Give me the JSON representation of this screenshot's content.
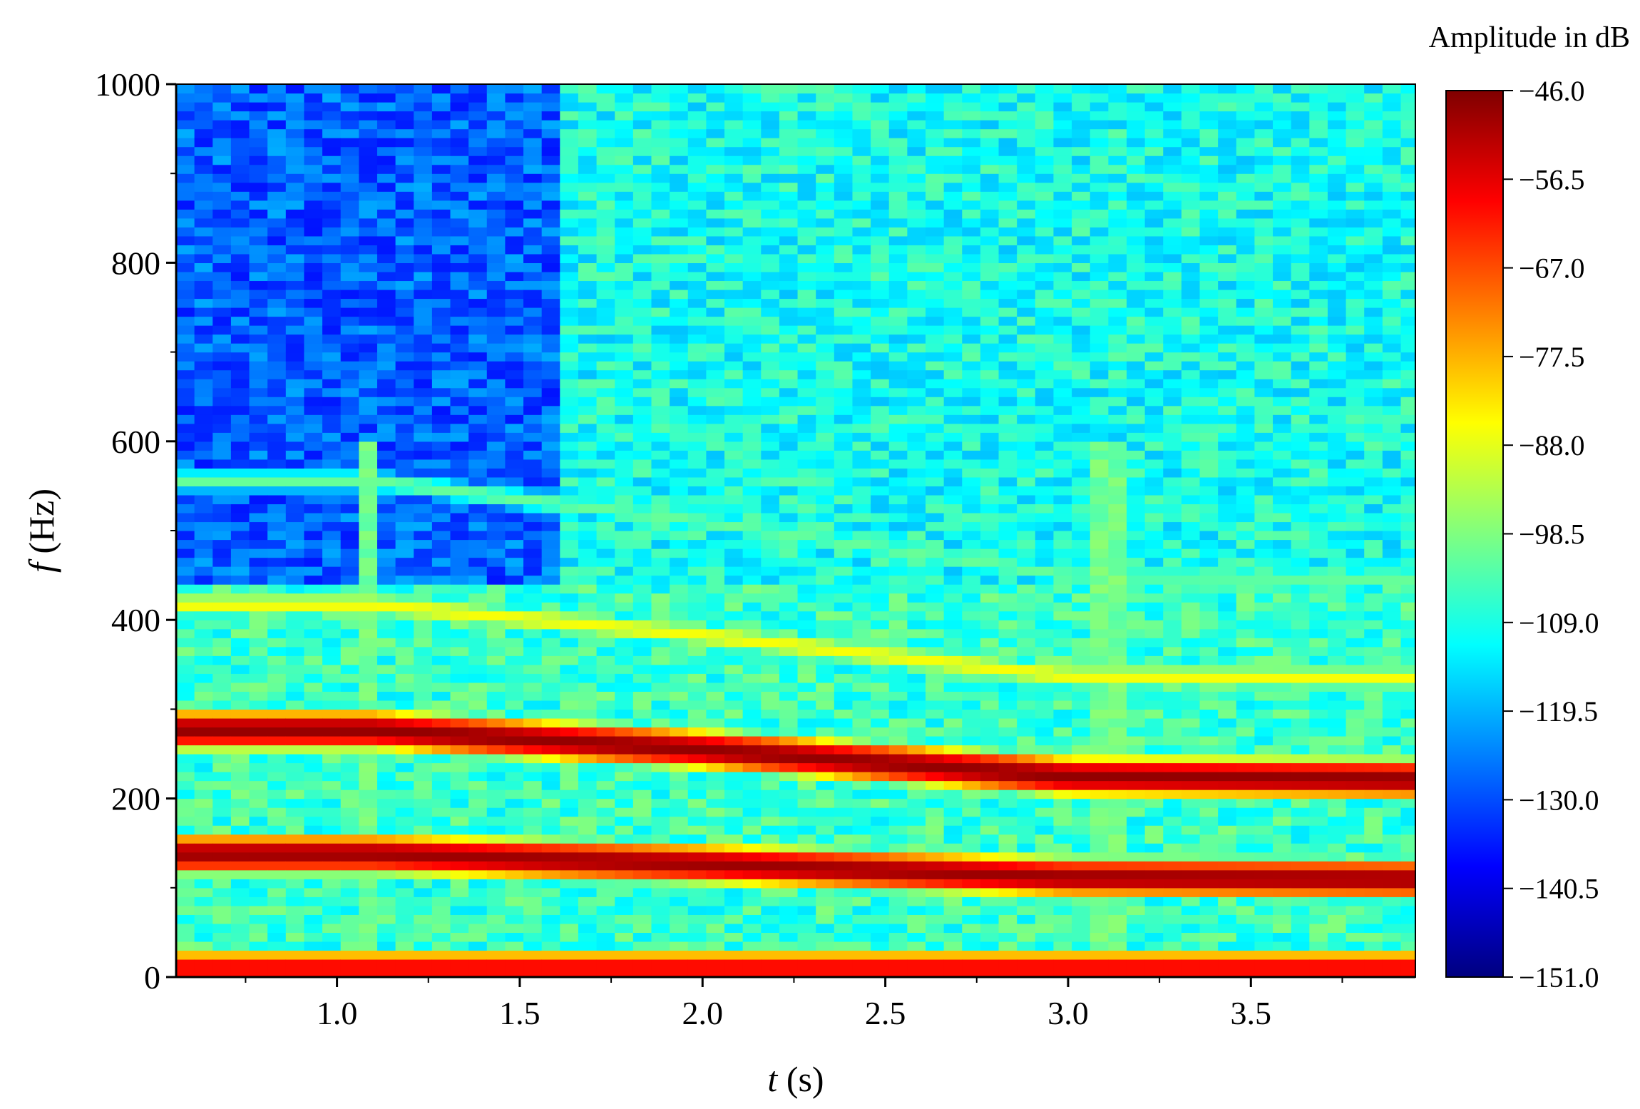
{
  "chart_data": {
    "type": "heatmap",
    "title": "",
    "xlabel_var": "t",
    "xlabel_unit": "(s)",
    "ylabel_var": "f",
    "ylabel_unit": "(Hz)",
    "xlim": [
      0.56,
      3.95
    ],
    "ylim": [
      0,
      1000
    ],
    "x_ticks": [
      "1.0",
      "1.5",
      "2.0",
      "2.5",
      "3.0",
      "3.5"
    ],
    "x_tick_values": [
      1.0,
      1.5,
      2.0,
      2.5,
      3.0,
      3.5
    ],
    "y_ticks": [
      "0",
      "200",
      "400",
      "600",
      "800",
      "1000"
    ],
    "y_tick_values": [
      0,
      200,
      400,
      600,
      800,
      1000
    ],
    "colorbar": {
      "title": "Amplitude in dB",
      "min": -151.0,
      "max": -46.0,
      "ticks": [
        "-46.0",
        "-56.5",
        "-67.0",
        "-77.5",
        "-88.0",
        "-98.5",
        "-109.0",
        "-119.5",
        "-130.0",
        "-140.5",
        "-151.0"
      ],
      "tick_values": [
        -46.0,
        -56.5,
        -67.0,
        -77.5,
        -88.0,
        -98.5,
        -109.0,
        -119.5,
        -130.0,
        -140.5,
        -151.0
      ],
      "colormap": "jet"
    },
    "time_bin_s": 0.05,
    "freq_bin_hz": 10,
    "ridges": [
      {
        "description": "dominant harmonic",
        "t": [
          0.56,
          1.1,
          2.0,
          3.0,
          3.95
        ],
        "f_hz": [
          277,
          277,
          255,
          225,
          222
        ],
        "level_db": -48
      },
      {
        "description": "fundamental",
        "t": [
          0.56,
          1.1,
          2.0,
          3.0,
          3.95
        ],
        "f_hz": [
          138,
          138,
          127,
          112,
          110
        ],
        "level_db": -49
      },
      {
        "description": "upper harmonic",
        "t": [
          0.56,
          1.1,
          2.0,
          3.0,
          3.95
        ],
        "f_hz": [
          417,
          417,
          383,
          337,
          335
        ],
        "level_db": -86
      },
      {
        "description": "weak harmonic",
        "t": [
          0.56,
          1.1,
          2.0,
          3.0,
          3.95
        ],
        "f_hz": [
          556,
          556,
          510,
          450,
          446
        ],
        "level_db": -101
      },
      {
        "description": "low-frequency band",
        "t": [
          0.56,
          2.0,
          3.95
        ],
        "f_hz": [
          10,
          10,
          10
        ],
        "level_db": -58
      }
    ],
    "background_db": {
      "upper_band_early": -128,
      "upper_band_late": -110,
      "lower_band": -106
    },
    "broadband_events_s": [
      1.08,
      3.1
    ]
  }
}
